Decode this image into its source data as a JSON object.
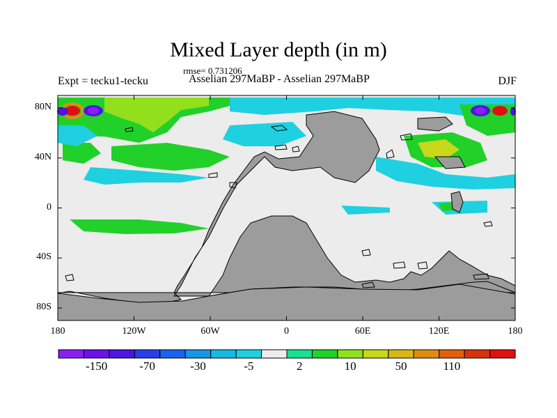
{
  "header": {
    "title": "Mixed Layer depth (in m)",
    "rmse": "rmse= 0.731206",
    "experiment": "Expt = tecku1-tecku",
    "comparison": "Asselian 297MaBP - Asselian 297MaBP",
    "season": "DJF"
  },
  "axes": {
    "lat_labels": [
      "80N",
      "40N",
      "0",
      "40S",
      "80S"
    ],
    "lat_values": [
      80,
      40,
      0,
      -40,
      -80
    ],
    "lon_labels": [
      "180",
      "120W",
      "60W",
      "0",
      "60E",
      "120E",
      "180"
    ],
    "lon_values": [
      -180,
      -120,
      -60,
      0,
      60,
      120,
      180
    ],
    "lat_range": [
      -90,
      90
    ],
    "lon_range": [
      -180,
      180
    ]
  },
  "colors": {
    "land": "#9c9c9c",
    "near_zero": "#ececec",
    "coast": "#000000"
  },
  "colorbar": {
    "labels": [
      "-150",
      "-70",
      "-30",
      "-5",
      "2",
      "10",
      "50",
      "110"
    ],
    "label_boxes": [
      1,
      3,
      5,
      7,
      9,
      11,
      13,
      15
    ],
    "colors": [
      "#8a1ff0",
      "#6a12e8",
      "#4b16e0",
      "#2a3ee8",
      "#1a62f0",
      "#1796e6",
      "#17b9e4",
      "#1fd0e0",
      "#ececec",
      "#17e08e",
      "#22d02a",
      "#92e01c",
      "#c8d81a",
      "#d8b817",
      "#e08c12",
      "#e06010",
      "#d8320f",
      "#e01010"
    ]
  }
}
